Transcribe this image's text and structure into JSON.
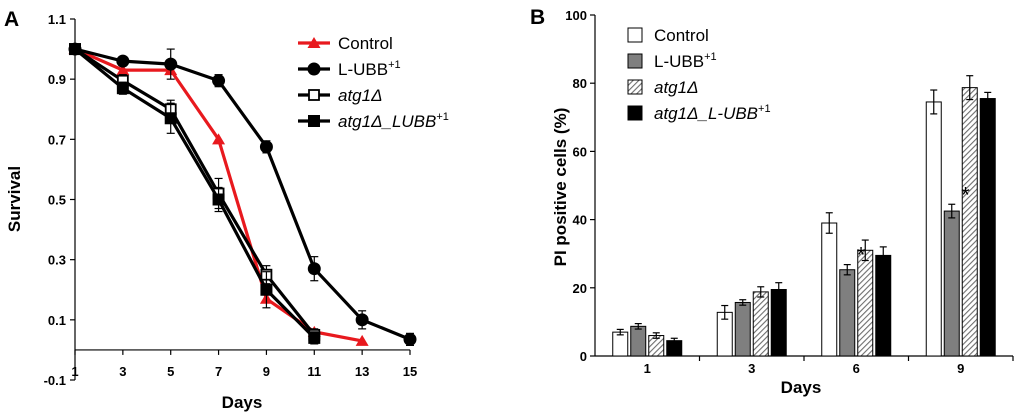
{
  "chart_data": [
    {
      "panel": "A",
      "type": "line",
      "xlabel": "Days",
      "ylabel": "Survival",
      "xlim": [
        1,
        15
      ],
      "ylim": [
        -0.1,
        1.1
      ],
      "xticks": [
        "1",
        "3",
        "5",
        "7",
        "9",
        "11",
        "13",
        "15"
      ],
      "yticks": [
        "-0.1",
        "0.1",
        "0.3",
        "0.5",
        "0.7",
        "0.9",
        "1.1"
      ],
      "legend_position": "top-right",
      "series": [
        {
          "name": "Control",
          "name_main": "Control",
          "name_sup": "",
          "italic": false,
          "color": "#e8191e",
          "marker": "triangle",
          "x": [
            1,
            3,
            5,
            7,
            9,
            11,
            13
          ],
          "y": [
            1.0,
            0.93,
            0.93,
            0.7,
            0.17,
            0.06,
            0.03
          ],
          "err": [
            0,
            0,
            0,
            0,
            0,
            0,
            0
          ]
        },
        {
          "name": "L-UBB+1",
          "name_main": "L-UBB",
          "name_sup": "+1",
          "italic": false,
          "color": "#000000",
          "marker": "circle",
          "x": [
            1,
            3,
            5,
            7,
            9,
            11,
            13,
            15
          ],
          "y": [
            1.0,
            0.96,
            0.95,
            0.895,
            0.675,
            0.27,
            0.1,
            0.035
          ],
          "err": [
            0,
            0.01,
            0.05,
            0.02,
            0.02,
            0.04,
            0.03,
            0.02
          ]
        },
        {
          "name": "atg1Δ",
          "name_main": "atg1Δ",
          "name_sup": "",
          "italic": true,
          "color": "#000000",
          "marker": "open-square",
          "x": [
            1,
            3,
            5,
            7,
            9,
            11
          ],
          "y": [
            1.0,
            0.895,
            0.8,
            0.52,
            0.25,
            0.05
          ],
          "err": [
            0,
            0.02,
            0.03,
            0.05,
            0.03,
            0.02
          ]
        },
        {
          "name": "atg1Δ_LUBB+1",
          "name_main": "atg1Δ_LUBB",
          "name_sup": "+1",
          "italic": true,
          "color": "#000000",
          "marker": "filled-square",
          "x": [
            1,
            3,
            5,
            7,
            9,
            11
          ],
          "y": [
            1.0,
            0.87,
            0.77,
            0.5,
            0.2,
            0.04
          ],
          "err": [
            0,
            0.02,
            0.05,
            0.04,
            0.06,
            0.02
          ]
        }
      ]
    },
    {
      "panel": "B",
      "type": "bar",
      "xlabel": "Days",
      "ylabel": "PI positive cells (%)",
      "categories": [
        "1",
        "3",
        "6",
        "9"
      ],
      "ylim": [
        0,
        100
      ],
      "yticks": [
        "0",
        "20",
        "40",
        "60",
        "80",
        "100"
      ],
      "legend_position": "top-left",
      "series": [
        {
          "name": "Control",
          "name_main": "Control",
          "name_sup": "",
          "italic": false,
          "fill": "white",
          "values": [
            7,
            12.8,
            39,
            74.5
          ],
          "err": [
            0.8,
            2.0,
            3.0,
            3.5
          ]
        },
        {
          "name": "L-UBB+1",
          "name_main": "L-UBB",
          "name_sup": "+1",
          "italic": false,
          "fill": "gray",
          "values": [
            8.7,
            15.7,
            25.3,
            42.5
          ],
          "err": [
            0.8,
            0.8,
            1.5,
            2.0
          ]
        },
        {
          "name": "atg1Δ",
          "name_main": "atg1Δ",
          "name_sup": "",
          "italic": true,
          "fill": "hatch",
          "values": [
            6,
            18.8,
            31,
            78.7
          ],
          "err": [
            0.8,
            1.5,
            3.0,
            3.5
          ]
        },
        {
          "name": "atg1Δ_L-UBB+1",
          "name_main": "atg1Δ_L-UBB",
          "name_sup": "+1",
          "italic": true,
          "fill": "black",
          "values": [
            4.5,
            19.5,
            29.5,
            75.5
          ],
          "err": [
            0.7,
            2.0,
            2.5,
            1.8
          ]
        }
      ],
      "annotations": [
        {
          "category": "6",
          "series": "L-UBB+1",
          "text": "*"
        },
        {
          "category": "9",
          "series": "L-UBB+1",
          "text": "*"
        }
      ]
    }
  ]
}
